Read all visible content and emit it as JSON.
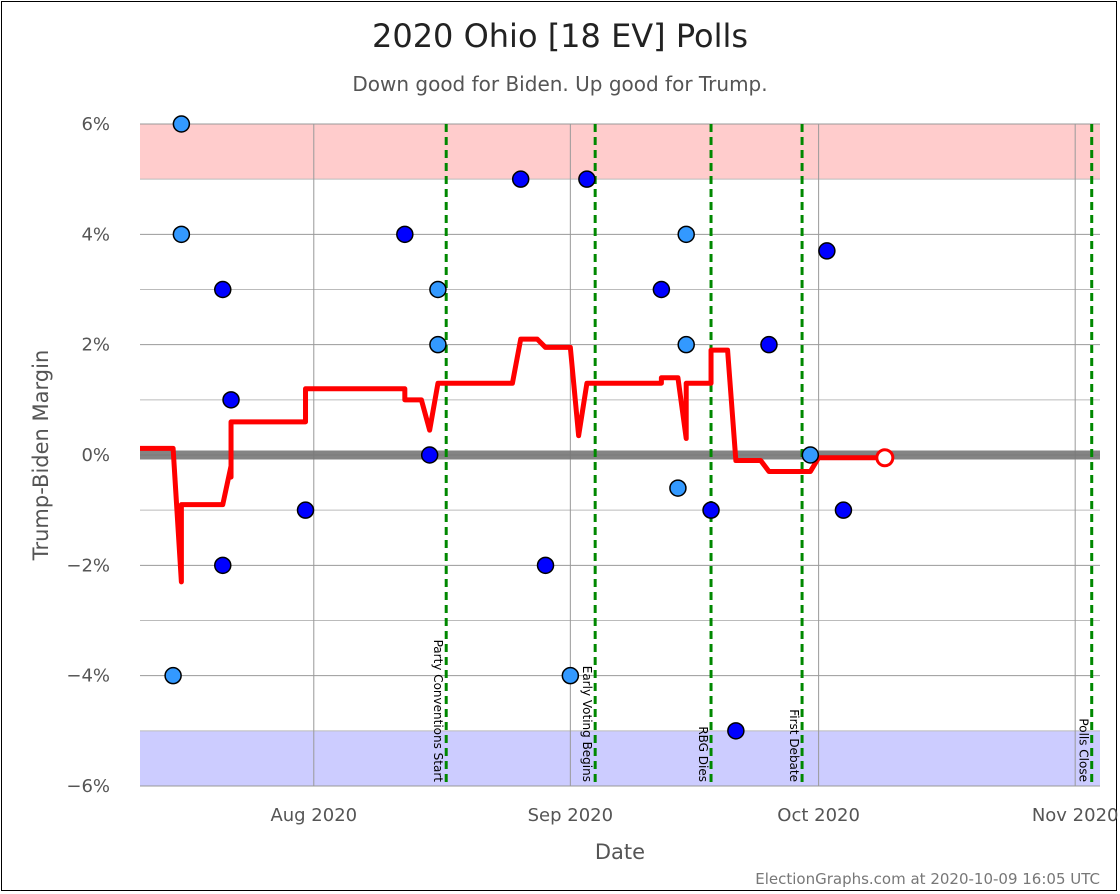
{
  "chart_data": {
    "type": "scatter",
    "title": "2020 Ohio [18 EV] Polls",
    "subtitle": "Down good for Biden. Up good for Trump.",
    "xlabel": "Date",
    "ylabel": "Trump-Biden Margin",
    "footer": "ElectionGraphs.com at 2020-10-09 16:05 UTC",
    "xlim": [
      "2020-07-11",
      "2020-11-04"
    ],
    "ylim": [
      -6,
      6
    ],
    "y_ticks": [
      {
        "value": 6,
        "label": "6%"
      },
      {
        "value": 4,
        "label": "4%"
      },
      {
        "value": 2,
        "label": "2%"
      },
      {
        "value": 0,
        "label": "0%"
      },
      {
        "value": -2,
        "label": "−2%"
      },
      {
        "value": -4,
        "label": "−4%"
      },
      {
        "value": -6,
        "label": "−6%"
      }
    ],
    "x_ticks": [
      {
        "date": "2020-08-01",
        "label": "Aug 2020"
      },
      {
        "date": "2020-09-01",
        "label": "Sep 2020"
      },
      {
        "date": "2020-10-01",
        "label": "Oct 2020"
      },
      {
        "date": "2020-11-01",
        "label": "Nov 2020"
      }
    ],
    "grid": true,
    "bands": [
      {
        "from": 5,
        "to": 6,
        "color": "#ffcccc"
      },
      {
        "from": -6,
        "to": -5,
        "color": "#ccccff"
      }
    ],
    "events": [
      {
        "date": "2020-08-17",
        "label": "Party Conventions Start"
      },
      {
        "date": "2020-09-04",
        "label": "Early Voting Begins"
      },
      {
        "date": "2020-09-18",
        "label": "RBG Dies"
      },
      {
        "date": "2020-09-29",
        "label": "First Debate"
      },
      {
        "date": "2020-11-03",
        "label": "Polls Close"
      }
    ],
    "polls": [
      {
        "date": "2020-07-16",
        "value": 6,
        "color": "#3399ff"
      },
      {
        "date": "2020-07-16",
        "value": 4,
        "color": "#3399ff"
      },
      {
        "date": "2020-07-15",
        "value": -4,
        "color": "#3399ff"
      },
      {
        "date": "2020-07-21",
        "value": 3,
        "color": "#0000ff"
      },
      {
        "date": "2020-07-22",
        "value": 1,
        "color": "#0000ff"
      },
      {
        "date": "2020-07-21",
        "value": -2,
        "color": "#0000ff"
      },
      {
        "date": "2020-07-31",
        "value": -1,
        "color": "#0000ff"
      },
      {
        "date": "2020-08-12",
        "value": 4,
        "color": "#0000ff"
      },
      {
        "date": "2020-08-15",
        "value": 0,
        "color": "#0000ff"
      },
      {
        "date": "2020-08-16",
        "value": 3,
        "color": "#3399ff"
      },
      {
        "date": "2020-08-16",
        "value": 2,
        "color": "#3399ff"
      },
      {
        "date": "2020-08-26",
        "value": 5,
        "color": "#0000ff"
      },
      {
        "date": "2020-08-29",
        "value": -2,
        "color": "#0000ff"
      },
      {
        "date": "2020-09-01",
        "value": -4,
        "color": "#3399ff"
      },
      {
        "date": "2020-09-03",
        "value": 5,
        "color": "#0000ff"
      },
      {
        "date": "2020-09-12",
        "value": 3,
        "color": "#0000ff"
      },
      {
        "date": "2020-09-14",
        "value": -0.6,
        "color": "#3399ff"
      },
      {
        "date": "2020-09-15",
        "value": 4,
        "color": "#3399ff"
      },
      {
        "date": "2020-09-15",
        "value": 2,
        "color": "#3399ff"
      },
      {
        "date": "2020-09-18",
        "value": -1,
        "color": "#0000ff"
      },
      {
        "date": "2020-09-21",
        "value": -5,
        "color": "#0000ff"
      },
      {
        "date": "2020-09-25",
        "value": 2,
        "color": "#0000ff"
      },
      {
        "date": "2020-09-30",
        "value": 0,
        "color": "#3399ff"
      },
      {
        "date": "2020-10-02",
        "value": 3.7,
        "color": "#0000ff"
      },
      {
        "date": "2020-10-04",
        "value": -1,
        "color": "#0000ff"
      }
    ],
    "average": {
      "name": "",
      "color": "#ff0000",
      "end_marker": {
        "date": "2020-10-09",
        "value": -0.05
      },
      "points": [
        [
          "2020-07-11",
          0.12
        ],
        [
          "2020-07-15",
          0.12
        ],
        [
          "2020-07-16",
          -2.3
        ],
        [
          "2020-07-16",
          -0.9
        ],
        [
          "2020-07-21",
          -0.9
        ],
        [
          "2020-07-22",
          -0.2
        ],
        [
          "2020-07-22",
          -0.4
        ],
        [
          "2020-07-22",
          0.6
        ],
        [
          "2020-07-31",
          0.6
        ],
        [
          "2020-07-31",
          1.2
        ],
        [
          "2020-08-12",
          1.2
        ],
        [
          "2020-08-12",
          1.0
        ],
        [
          "2020-08-14",
          1.0
        ],
        [
          "2020-08-15",
          0.45
        ],
        [
          "2020-08-16",
          1.3
        ],
        [
          "2020-08-25",
          1.3
        ],
        [
          "2020-08-26",
          2.1
        ],
        [
          "2020-08-28",
          2.1
        ],
        [
          "2020-08-29",
          1.95
        ],
        [
          "2020-09-01",
          1.95
        ],
        [
          "2020-09-02",
          0.35
        ],
        [
          "2020-09-03",
          1.3
        ],
        [
          "2020-09-12",
          1.3
        ],
        [
          "2020-09-12",
          1.4
        ],
        [
          "2020-09-14",
          1.4
        ],
        [
          "2020-09-15",
          0.3
        ],
        [
          "2020-09-15",
          1.3
        ],
        [
          "2020-09-18",
          1.3
        ],
        [
          "2020-09-18",
          1.9
        ],
        [
          "2020-09-20",
          1.9
        ],
        [
          "2020-09-21",
          -0.1
        ],
        [
          "2020-09-24",
          -0.1
        ],
        [
          "2020-09-25",
          -0.3
        ],
        [
          "2020-09-30",
          -0.3
        ],
        [
          "2020-10-01",
          -0.05
        ],
        [
          "2020-10-09",
          -0.05
        ]
      ]
    }
  }
}
